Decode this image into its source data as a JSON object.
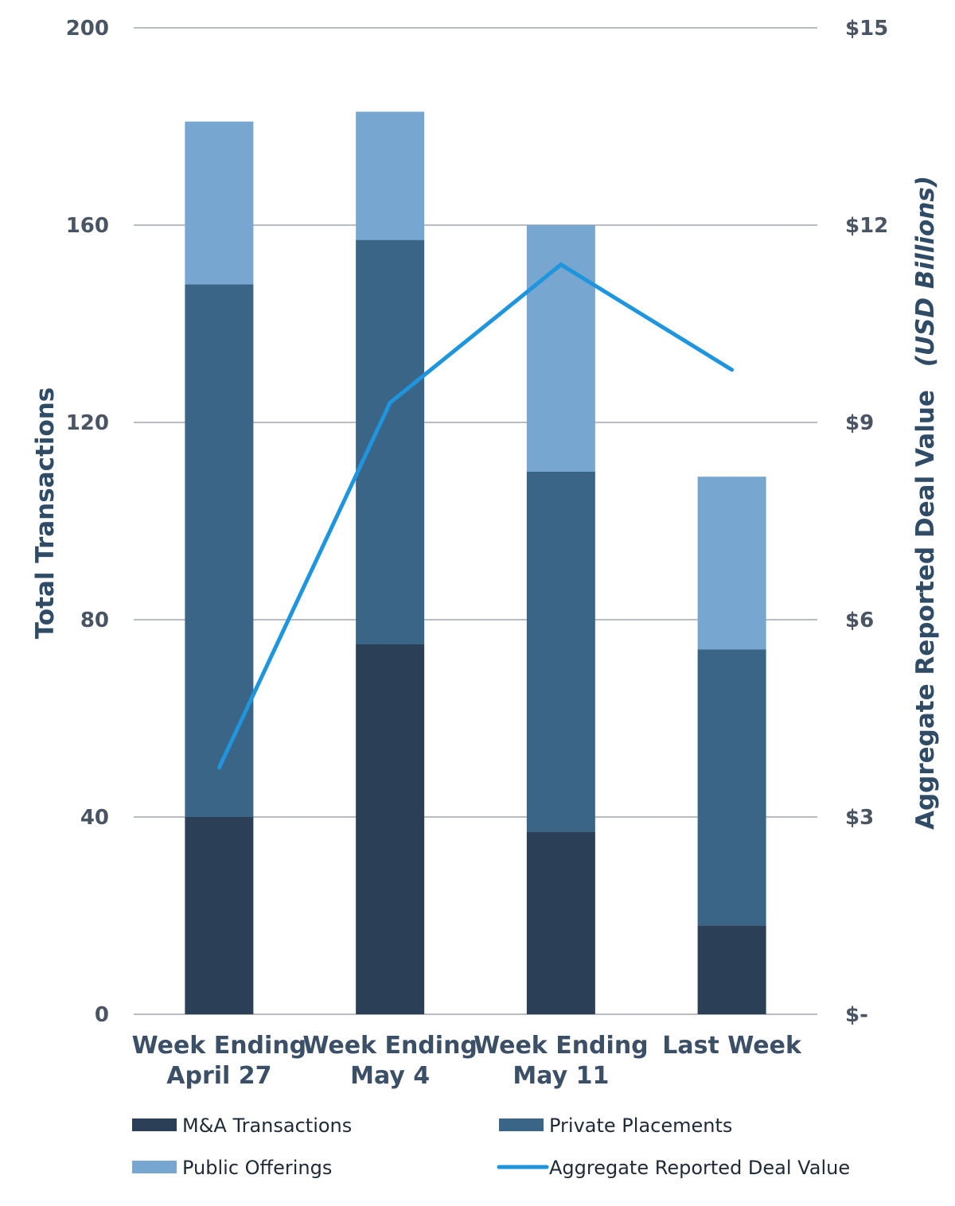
{
  "chart_data": {
    "type": "bar",
    "stacked": true,
    "categories": [
      [
        "Week Ending",
        "April 27"
      ],
      [
        "Week Ending",
        "May 4"
      ],
      [
        "Week Ending",
        "May 11"
      ],
      [
        "Last Week"
      ]
    ],
    "series": [
      {
        "name": "M&A Transactions",
        "type": "bar",
        "axis": "left",
        "color": "#2b4057",
        "values": [
          40,
          75,
          37,
          18
        ]
      },
      {
        "name": "Private Placements",
        "type": "bar",
        "axis": "left",
        "color": "#3b6586",
        "values": [
          108,
          82,
          73,
          56
        ]
      },
      {
        "name": "Public Offerings",
        "type": "bar",
        "axis": "left",
        "color": "#77a6d1",
        "values": [
          33,
          26,
          50,
          35
        ]
      },
      {
        "name": "Aggregate Reported Deal Value",
        "type": "line",
        "axis": "right",
        "color": "#1f95dd",
        "values": [
          3.75,
          9.3,
          11.4,
          9.8
        ]
      }
    ],
    "y_left": {
      "label": "Total Transactions",
      "range": [
        0,
        200
      ],
      "ticks": [
        0,
        40,
        80,
        120,
        160,
        200
      ],
      "tick_labels": [
        "0",
        "40",
        "80",
        "120",
        "160",
        "200"
      ]
    },
    "y_right": {
      "label_main": "Aggregate Reported Deal Value",
      "label_unit": "(USD Billions)",
      "range": [
        0,
        15
      ],
      "ticks": [
        0,
        3,
        6,
        9,
        12,
        15
      ],
      "tick_labels": [
        "$-",
        "$3",
        "$6",
        "$9",
        "$12",
        "$15"
      ]
    },
    "grid": true,
    "legend_position": "bottom"
  },
  "colors": {
    "grid": "#8f959b",
    "tick_text": "#4a5563",
    "category_text": "#3b4f66",
    "axis_title": "#2f4b66"
  }
}
